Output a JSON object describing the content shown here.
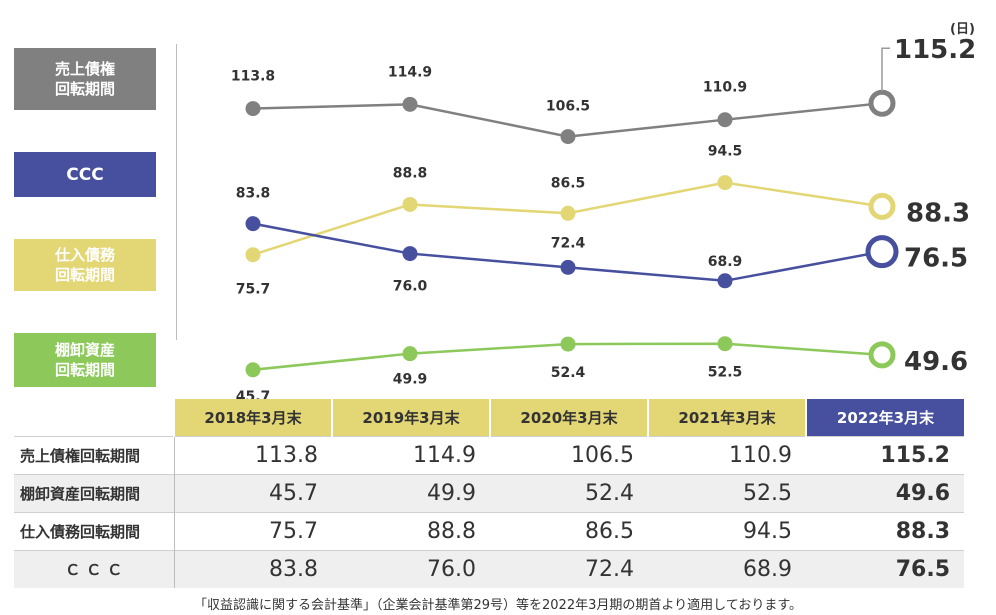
{
  "chart_data": {
    "type": "line",
    "unit": "(日)",
    "categories": [
      "2018年3月末",
      "2019年3月末",
      "2020年3月末",
      "2021年3月末",
      "2022年3月末"
    ],
    "series": [
      {
        "name": "売上債権回転期間",
        "label_lines": [
          "売上債権",
          "回転期間"
        ],
        "values": [
          113.8,
          114.9,
          106.5,
          110.9,
          115.2
        ],
        "color": "#808080"
      },
      {
        "name": "CCC",
        "label_lines": [
          "CCC"
        ],
        "values": [
          83.8,
          76.0,
          72.4,
          68.9,
          76.5
        ],
        "color": "#46509e"
      },
      {
        "name": "仕入債務回転期間",
        "label_lines": [
          "仕入債務",
          "回転期間"
        ],
        "values": [
          75.7,
          88.8,
          86.5,
          94.5,
          88.3
        ],
        "color": "#e3d674"
      },
      {
        "name": "棚卸資産回転期間",
        "label_lines": [
          "棚卸資産",
          "回転期間"
        ],
        "values": [
          45.7,
          49.9,
          52.4,
          52.5,
          49.6
        ],
        "color": "#8cc85a"
      }
    ]
  },
  "table": {
    "headers": [
      "2018年3月末",
      "2019年3月末",
      "2020年3月末",
      "2021年3月末",
      "2022年3月末"
    ],
    "rows": [
      {
        "label": "売上債権回転期間",
        "values": [
          "113.8",
          "114.9",
          "106.5",
          "110.9",
          "115.2"
        ]
      },
      {
        "label": "棚卸資産回転期間",
        "values": [
          "45.7",
          "49.9",
          "52.4",
          "52.5",
          "49.6"
        ]
      },
      {
        "label": "仕入債務回転期間",
        "values": [
          "75.7",
          "88.8",
          "86.5",
          "94.5",
          "88.3"
        ]
      },
      {
        "label": "ＣＣＣ",
        "values": [
          "83.8",
          "76.0",
          "72.4",
          "68.9",
          "76.5"
        ]
      }
    ]
  },
  "footnote": "「収益認識に関する会計基準」（企業会計基準第29号）等を2022年3月期の期首より適用しております。"
}
